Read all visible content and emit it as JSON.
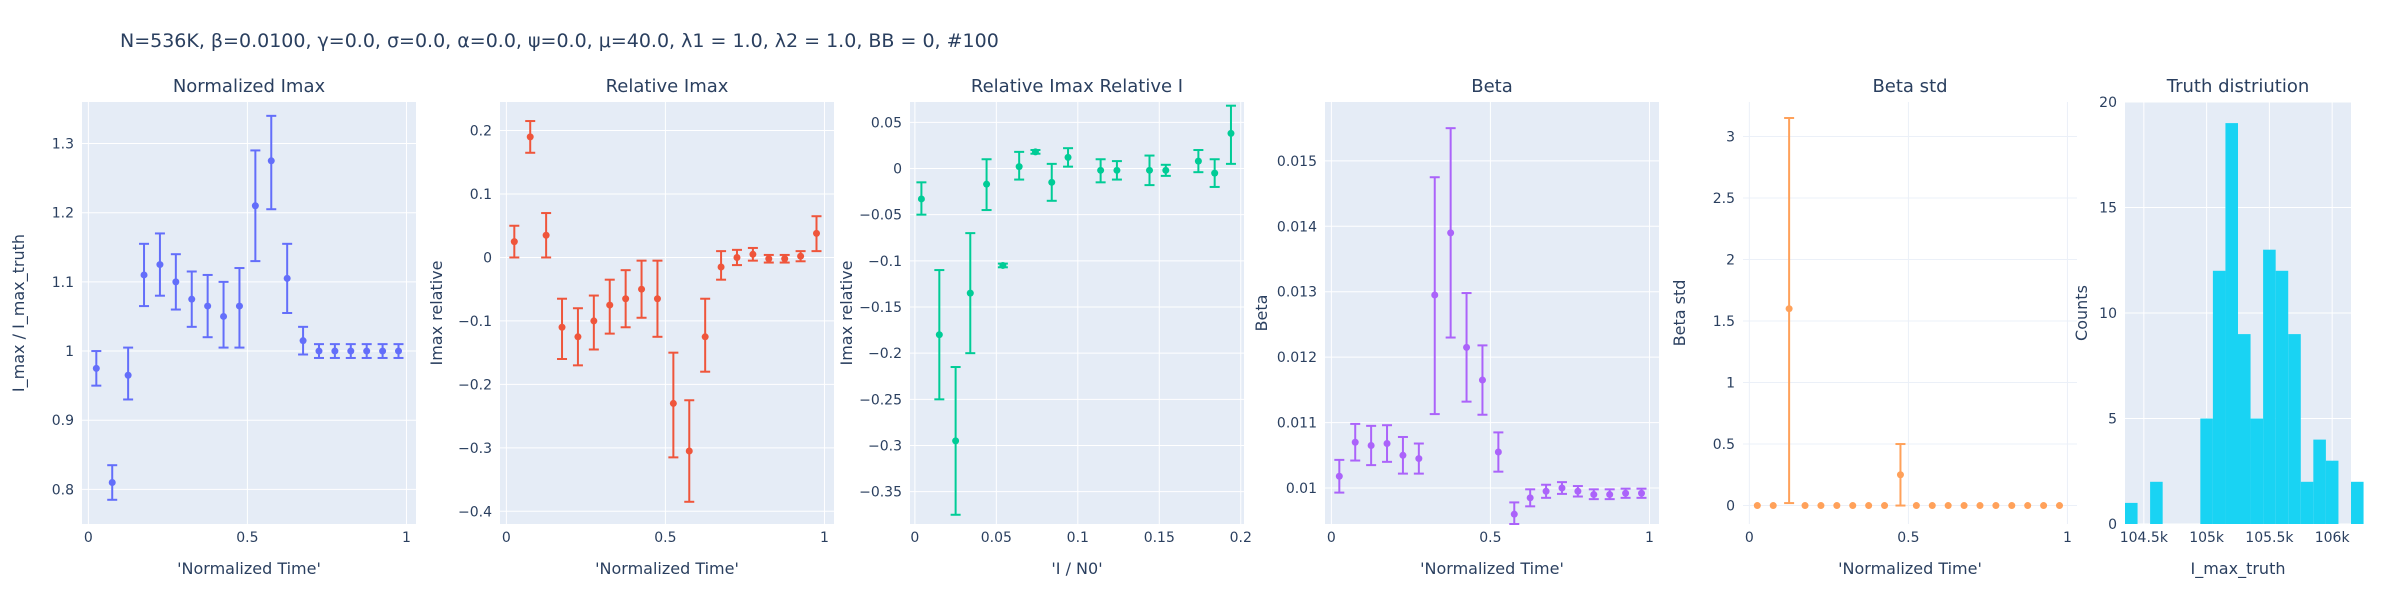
{
  "suptitle": "N=536K, β=0.0100, γ=0.0, σ=0.0,  α=0.0, ψ=0.0, μ=40.0, λ1 = 1.0, λ2 = 1.0, BB = 0, #100",
  "chart_data": [
    {
      "type": "scatter",
      "title": "Normalized Imax",
      "xlabel": "'Normalized Time'",
      "ylabel": "I_max / I_max_truth",
      "color": "#636efa",
      "xlim": [
        -0.02,
        1.03
      ],
      "ylim": [
        0.75,
        1.36
      ],
      "xticks": [
        0,
        0.5,
        1
      ],
      "xticklabels": [
        "0",
        "0.5",
        "1"
      ],
      "yticks": [
        0.8,
        0.9,
        1.0,
        1.1,
        1.2,
        1.3
      ],
      "yticklabels": [
        "0.8",
        "0.9",
        "1",
        "1.1",
        "1.2",
        "1.3"
      ],
      "points": [
        {
          "x": 0.025,
          "y": 0.975,
          "lo": 0.95,
          "hi": 1.0
        },
        {
          "x": 0.075,
          "y": 0.81,
          "lo": 0.785,
          "hi": 0.835
        },
        {
          "x": 0.125,
          "y": 0.965,
          "lo": 0.93,
          "hi": 1.005
        },
        {
          "x": 0.175,
          "y": 1.11,
          "lo": 1.065,
          "hi": 1.155
        },
        {
          "x": 0.225,
          "y": 1.125,
          "lo": 1.08,
          "hi": 1.17
        },
        {
          "x": 0.275,
          "y": 1.1,
          "lo": 1.06,
          "hi": 1.14
        },
        {
          "x": 0.325,
          "y": 1.075,
          "lo": 1.035,
          "hi": 1.115
        },
        {
          "x": 0.375,
          "y": 1.065,
          "lo": 1.02,
          "hi": 1.11
        },
        {
          "x": 0.425,
          "y": 1.05,
          "lo": 1.005,
          "hi": 1.1
        },
        {
          "x": 0.475,
          "y": 1.065,
          "lo": 1.005,
          "hi": 1.12
        },
        {
          "x": 0.525,
          "y": 1.21,
          "lo": 1.13,
          "hi": 1.29
        },
        {
          "x": 0.575,
          "y": 1.275,
          "lo": 1.205,
          "hi": 1.34
        },
        {
          "x": 0.625,
          "y": 1.105,
          "lo": 1.055,
          "hi": 1.155
        },
        {
          "x": 0.675,
          "y": 1.015,
          "lo": 0.995,
          "hi": 1.035
        },
        {
          "x": 0.725,
          "y": 1.0,
          "lo": 0.99,
          "hi": 1.01
        },
        {
          "x": 0.775,
          "y": 1.0,
          "lo": 0.99,
          "hi": 1.01
        },
        {
          "x": 0.825,
          "y": 1.0,
          "lo": 0.99,
          "hi": 1.01
        },
        {
          "x": 0.875,
          "y": 1.0,
          "lo": 0.99,
          "hi": 1.01
        },
        {
          "x": 0.925,
          "y": 1.0,
          "lo": 0.99,
          "hi": 1.01
        },
        {
          "x": 0.975,
          "y": 1.0,
          "lo": 0.99,
          "hi": 1.01
        }
      ]
    },
    {
      "type": "scatter",
      "title": "Relative Imax",
      "xlabel": "'Normalized Time'",
      "ylabel": "Imax relative",
      "color": "#ef553b",
      "xlim": [
        -0.02,
        1.03
      ],
      "ylim": [
        -0.42,
        0.245
      ],
      "xticks": [
        0,
        0.5,
        1
      ],
      "xticklabels": [
        "0",
        "0.5",
        "1"
      ],
      "yticks": [
        -0.4,
        -0.3,
        -0.2,
        -0.1,
        0,
        0.1,
        0.2
      ],
      "yticklabels": [
        "−0.4",
        "−0.3",
        "−0.2",
        "−0.1",
        "0",
        "0.1",
        "0.2"
      ],
      "points": [
        {
          "x": 0.025,
          "y": 0.025,
          "lo": 0.0,
          "hi": 0.05
        },
        {
          "x": 0.075,
          "y": 0.19,
          "lo": 0.165,
          "hi": 0.215
        },
        {
          "x": 0.125,
          "y": 0.035,
          "lo": 0.0,
          "hi": 0.07
        },
        {
          "x": 0.175,
          "y": -0.11,
          "lo": -0.16,
          "hi": -0.065
        },
        {
          "x": 0.225,
          "y": -0.125,
          "lo": -0.17,
          "hi": -0.08
        },
        {
          "x": 0.275,
          "y": -0.1,
          "lo": -0.145,
          "hi": -0.06
        },
        {
          "x": 0.325,
          "y": -0.075,
          "lo": -0.12,
          "hi": -0.035
        },
        {
          "x": 0.375,
          "y": -0.065,
          "lo": -0.11,
          "hi": -0.02
        },
        {
          "x": 0.425,
          "y": -0.05,
          "lo": -0.095,
          "hi": -0.005
        },
        {
          "x": 0.475,
          "y": -0.065,
          "lo": -0.125,
          "hi": -0.005
        },
        {
          "x": 0.525,
          "y": -0.23,
          "lo": -0.315,
          "hi": -0.15
        },
        {
          "x": 0.575,
          "y": -0.305,
          "lo": -0.385,
          "hi": -0.225
        },
        {
          "x": 0.625,
          "y": -0.125,
          "lo": -0.18,
          "hi": -0.065
        },
        {
          "x": 0.675,
          "y": -0.015,
          "lo": -0.035,
          "hi": 0.01
        },
        {
          "x": 0.725,
          "y": 0.0,
          "lo": -0.012,
          "hi": 0.012
        },
        {
          "x": 0.775,
          "y": 0.005,
          "lo": -0.005,
          "hi": 0.015
        },
        {
          "x": 0.825,
          "y": -0.002,
          "lo": -0.008,
          "hi": 0.004
        },
        {
          "x": 0.875,
          "y": -0.002,
          "lo": -0.008,
          "hi": 0.004
        },
        {
          "x": 0.925,
          "y": 0.002,
          "lo": -0.006,
          "hi": 0.01
        },
        {
          "x": 0.975,
          "y": 0.038,
          "lo": 0.01,
          "hi": 0.065
        }
      ]
    },
    {
      "type": "scatter",
      "title": "Relative Imax Relative I",
      "xlabel": "'I / N0'",
      "ylabel": "Imax relative",
      "color": "#00cc96",
      "xlim": [
        -0.003,
        0.202
      ],
      "ylim": [
        -0.385,
        0.072
      ],
      "xticks": [
        0,
        0.05,
        0.1,
        0.15,
        0.2
      ],
      "xticklabels": [
        "0",
        "0.05",
        "0.1",
        "0.15",
        "0.2"
      ],
      "yticks": [
        -0.35,
        -0.3,
        -0.25,
        -0.2,
        -0.15,
        -0.1,
        -0.05,
        0,
        0.05
      ],
      "yticklabels": [
        "−0.35",
        "−0.3",
        "−0.25",
        "−0.2",
        "−0.15",
        "−0.1",
        "−0.05",
        "0",
        "0.05"
      ],
      "points": [
        {
          "x": 0.004,
          "y": -0.033,
          "lo": -0.05,
          "hi": -0.015
        },
        {
          "x": 0.015,
          "y": -0.18,
          "lo": -0.25,
          "hi": -0.11
        },
        {
          "x": 0.025,
          "y": -0.295,
          "lo": -0.375,
          "hi": -0.215
        },
        {
          "x": 0.034,
          "y": -0.135,
          "lo": -0.2,
          "hi": -0.07
        },
        {
          "x": 0.044,
          "y": -0.017,
          "lo": -0.045,
          "hi": 0.01
        },
        {
          "x": 0.054,
          "y": -0.105,
          "lo": -0.107,
          "hi": -0.103
        },
        {
          "x": 0.064,
          "y": 0.002,
          "lo": -0.012,
          "hi": 0.018
        },
        {
          "x": 0.074,
          "y": 0.018,
          "lo": 0.016,
          "hi": 0.02
        },
        {
          "x": 0.084,
          "y": -0.015,
          "lo": -0.035,
          "hi": 0.005
        },
        {
          "x": 0.094,
          "y": 0.012,
          "lo": 0.002,
          "hi": 0.022
        },
        {
          "x": 0.114,
          "y": -0.002,
          "lo": -0.015,
          "hi": 0.01
        },
        {
          "x": 0.124,
          "y": -0.002,
          "lo": -0.012,
          "hi": 0.008
        },
        {
          "x": 0.144,
          "y": -0.002,
          "lo": -0.018,
          "hi": 0.014
        },
        {
          "x": 0.154,
          "y": -0.002,
          "lo": -0.008,
          "hi": 0.004
        },
        {
          "x": 0.174,
          "y": 0.008,
          "lo": -0.004,
          "hi": 0.02
        },
        {
          "x": 0.184,
          "y": -0.005,
          "lo": -0.02,
          "hi": 0.01
        },
        {
          "x": 0.194,
          "y": 0.038,
          "lo": 0.005,
          "hi": 0.068
        }
      ]
    },
    {
      "type": "scatter",
      "title": "Beta",
      "xlabel": "'Normalized Time'",
      "ylabel": "Beta",
      "color": "#ab63fa",
      "xlim": [
        -0.02,
        1.03
      ],
      "ylim": [
        0.00945,
        0.0159
      ],
      "xticks": [
        0,
        0.5,
        1
      ],
      "xticklabels": [
        "0",
        "0.5",
        "1"
      ],
      "yticks": [
        0.01,
        0.011,
        0.012,
        0.013,
        0.014,
        0.015
      ],
      "yticklabels": [
        "0.01",
        "0.011",
        "0.012",
        "0.013",
        "0.014",
        "0.015"
      ],
      "points": [
        {
          "x": 0.025,
          "y": 0.01018,
          "lo": 0.00993,
          "hi": 0.01043
        },
        {
          "x": 0.075,
          "y": 0.0107,
          "lo": 0.01042,
          "hi": 0.01098
        },
        {
          "x": 0.125,
          "y": 0.01065,
          "lo": 0.01035,
          "hi": 0.01095
        },
        {
          "x": 0.175,
          "y": 0.01068,
          "lo": 0.0104,
          "hi": 0.01096
        },
        {
          "x": 0.225,
          "y": 0.0105,
          "lo": 0.01022,
          "hi": 0.01078
        },
        {
          "x": 0.275,
          "y": 0.01045,
          "lo": 0.01022,
          "hi": 0.01068
        },
        {
          "x": 0.325,
          "y": 0.01295,
          "lo": 0.01113,
          "hi": 0.01475
        },
        {
          "x": 0.375,
          "y": 0.0139,
          "lo": 0.0123,
          "hi": 0.0155
        },
        {
          "x": 0.425,
          "y": 0.01215,
          "lo": 0.01132,
          "hi": 0.01298
        },
        {
          "x": 0.475,
          "y": 0.01165,
          "lo": 0.01112,
          "hi": 0.01218
        },
        {
          "x": 0.525,
          "y": 0.01055,
          "lo": 0.01025,
          "hi": 0.01085
        },
        {
          "x": 0.575,
          "y": 0.0096,
          "lo": 0.00945,
          "hi": 0.00978
        },
        {
          "x": 0.625,
          "y": 0.00985,
          "lo": 0.00972,
          "hi": 0.00998
        },
        {
          "x": 0.675,
          "y": 0.00995,
          "lo": 0.00985,
          "hi": 0.01005
        },
        {
          "x": 0.725,
          "y": 0.01,
          "lo": 0.00991,
          "hi": 0.01009
        },
        {
          "x": 0.775,
          "y": 0.00995,
          "lo": 0.00987,
          "hi": 0.01003
        },
        {
          "x": 0.825,
          "y": 0.0099,
          "lo": 0.00983,
          "hi": 0.00998
        },
        {
          "x": 0.875,
          "y": 0.0099,
          "lo": 0.00983,
          "hi": 0.00998
        },
        {
          "x": 0.925,
          "y": 0.00992,
          "lo": 0.00985,
          "hi": 0.00999
        },
        {
          "x": 0.975,
          "y": 0.00992,
          "lo": 0.00985,
          "hi": 0.00999
        }
      ]
    },
    {
      "type": "scatter",
      "title": "Beta std",
      "xlabel": "'Normalized Time'",
      "ylabel": "Beta std",
      "color": "#ffa15a",
      "xlim": [
        -0.02,
        1.03
      ],
      "ylim": [
        -0.15,
        3.28
      ],
      "xticks": [
        0,
        0.5,
        1
      ],
      "xticklabels": [
        "0",
        "0.5",
        "1"
      ],
      "yticks": [
        0,
        0.5,
        1,
        1.5,
        2,
        2.5,
        3
      ],
      "yticklabels": [
        "0",
        "0.5",
        "1",
        "1.5",
        "2",
        "2.5",
        "3"
      ],
      "points": [
        {
          "x": 0.025,
          "y": 0.0,
          "lo": 0.0,
          "hi": 0.0
        },
        {
          "x": 0.075,
          "y": 0.0,
          "lo": 0.0,
          "hi": 0.0
        },
        {
          "x": 0.125,
          "y": 1.6,
          "lo": 0.02,
          "hi": 3.15
        },
        {
          "x": 0.175,
          "y": 0.0,
          "lo": 0.0,
          "hi": 0.0
        },
        {
          "x": 0.225,
          "y": 0.0,
          "lo": 0.0,
          "hi": 0.0
        },
        {
          "x": 0.275,
          "y": 0.0,
          "lo": 0.0,
          "hi": 0.0
        },
        {
          "x": 0.325,
          "y": 0.0,
          "lo": 0.0,
          "hi": 0.0
        },
        {
          "x": 0.375,
          "y": 0.0,
          "lo": 0.0,
          "hi": 0.0
        },
        {
          "x": 0.425,
          "y": 0.0,
          "lo": 0.0,
          "hi": 0.0
        },
        {
          "x": 0.475,
          "y": 0.25,
          "lo": 0.0,
          "hi": 0.5
        },
        {
          "x": 0.525,
          "y": 0.0,
          "lo": 0.0,
          "hi": 0.0
        },
        {
          "x": 0.575,
          "y": 0.0,
          "lo": 0.0,
          "hi": 0.0
        },
        {
          "x": 0.625,
          "y": 0.0,
          "lo": 0.0,
          "hi": 0.0
        },
        {
          "x": 0.675,
          "y": 0.0,
          "lo": 0.0,
          "hi": 0.0
        },
        {
          "x": 0.725,
          "y": 0.0,
          "lo": 0.0,
          "hi": 0.0
        },
        {
          "x": 0.775,
          "y": 0.0,
          "lo": 0.0,
          "hi": 0.0
        },
        {
          "x": 0.825,
          "y": 0.0,
          "lo": 0.0,
          "hi": 0.0
        },
        {
          "x": 0.875,
          "y": 0.0,
          "lo": 0.0,
          "hi": 0.0
        },
        {
          "x": 0.925,
          "y": 0.0,
          "lo": 0.0,
          "hi": 0.0
        },
        {
          "x": 0.975,
          "y": 0.0,
          "lo": 0.0,
          "hi": 0.0
        }
      ]
    },
    {
      "type": "bar",
      "title": "Truth distriution",
      "xlabel": "I_max_truth",
      "ylabel": "Counts",
      "color": "#19d3f3",
      "xlim": [
        104350,
        106150
      ],
      "ylim": [
        0,
        20
      ],
      "xticks": [
        104500,
        105000,
        105500,
        106000
      ],
      "xticklabels": [
        "104.5k",
        "105k",
        "105.5k",
        "106k"
      ],
      "yticks": [
        0,
        5,
        10,
        15,
        20
      ],
      "yticklabels": [
        "0",
        "5",
        "10",
        "15",
        "20"
      ],
      "bin_width": 100,
      "bins": [
        {
          "x": 104400,
          "count": 1
        },
        {
          "x": 104500,
          "count": 0
        },
        {
          "x": 104600,
          "count": 2
        },
        {
          "x": 104700,
          "count": 0
        },
        {
          "x": 104800,
          "count": 0
        },
        {
          "x": 104900,
          "count": 0
        },
        {
          "x": 105000,
          "count": 5
        },
        {
          "x": 105100,
          "count": 12
        },
        {
          "x": 105200,
          "count": 19
        },
        {
          "x": 105300,
          "count": 9
        },
        {
          "x": 105400,
          "count": 5
        },
        {
          "x": 105500,
          "count": 13
        },
        {
          "x": 105600,
          "count": 12
        },
        {
          "x": 105700,
          "count": 9
        },
        {
          "x": 105800,
          "count": 2
        },
        {
          "x": 105900,
          "count": 4
        },
        {
          "x": 106000,
          "count": 3
        },
        {
          "x": 106100,
          "count": 0
        },
        {
          "x": 106200,
          "count": 2
        }
      ]
    }
  ]
}
